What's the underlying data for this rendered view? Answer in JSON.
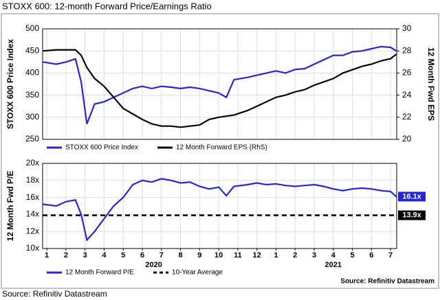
{
  "chart_data": [
    {
      "type": "line",
      "title": "STOXX 600: 12-month Forward Price/Earnings Ratio",
      "y_label": "STOXX 600 Price Index",
      "y2_label": "12 Month Fwd EPS",
      "x": [
        0.8,
        1.5,
        2,
        2.5,
        2.8,
        3.1,
        3.5,
        4,
        4.5,
        5,
        5.5,
        6,
        6.5,
        7,
        7.5,
        8,
        8.5,
        9,
        9.5,
        10,
        10.4,
        10.8,
        11.5,
        12,
        12.5,
        13,
        13.5,
        14,
        14.5,
        15,
        15.5,
        16,
        16.5,
        17,
        17.5,
        18,
        18.5,
        19,
        19.3
      ],
      "xlim": [
        0.78,
        19.32
      ],
      "ylim": [
        250,
        500
      ],
      "yticks": [
        250,
        300,
        350,
        400,
        450,
        500
      ],
      "y2lim": [
        20,
        30
      ],
      "y2ticks": [
        20,
        22,
        24,
        26,
        28,
        30
      ],
      "grid": true,
      "series": [
        {
          "name": "STOXX 600 Price Index",
          "color": "#2424d8",
          "values": [
            425,
            420,
            425,
            432,
            380,
            285,
            330,
            335,
            345,
            355,
            365,
            370,
            365,
            370,
            368,
            365,
            368,
            365,
            360,
            355,
            345,
            385,
            390,
            395,
            400,
            405,
            400,
            408,
            410,
            420,
            430,
            440,
            440,
            448,
            450,
            455,
            460,
            458,
            450
          ]
        },
        {
          "name": "12 Month Forward EPS (RhS)",
          "color": "#000000",
          "axis": "y2",
          "values": [
            28,
            28.1,
            28.1,
            28.1,
            27.6,
            26.5,
            25.5,
            24.8,
            23.8,
            22.8,
            22.3,
            21.8,
            21.4,
            21.2,
            21.2,
            21.1,
            21.2,
            21.3,
            21.8,
            22,
            22.1,
            22.2,
            22.6,
            23,
            23.4,
            23.8,
            24,
            24.3,
            24.5,
            24.9,
            25.2,
            25.5,
            26,
            26.3,
            26.6,
            26.8,
            27.1,
            27.3,
            27.7
          ]
        }
      ]
    },
    {
      "type": "line",
      "y_label": "12 Month Fwd P/E",
      "x": [
        0.8,
        1.5,
        2,
        2.5,
        2.8,
        3.1,
        3.5,
        4,
        4.5,
        5,
        5.5,
        6,
        6.5,
        7,
        7.5,
        8,
        8.5,
        9,
        9.5,
        10,
        10.4,
        10.8,
        11.5,
        12,
        12.5,
        13,
        13.5,
        14,
        14.5,
        15,
        15.5,
        16,
        16.5,
        17,
        17.5,
        18,
        18.5,
        19,
        19.3
      ],
      "xlim": [
        0.78,
        19.32
      ],
      "xticks": [
        1,
        2,
        3,
        4,
        5,
        6,
        7,
        8,
        9,
        10,
        11,
        12,
        {
          "value": 13,
          "label": "1"
        },
        {
          "value": 14,
          "label": "2"
        },
        {
          "value": 15,
          "label": "3"
        },
        {
          "value": 16,
          "label": "4"
        },
        {
          "value": 17,
          "label": "5"
        },
        {
          "value": 18,
          "label": "6"
        },
        {
          "value": 19,
          "label": "7"
        }
      ],
      "year_labels": [
        {
          "value": 6.6,
          "label": "2020"
        },
        {
          "value": 16,
          "label": "2021"
        }
      ],
      "ylim": [
        10,
        20
      ],
      "yticks": [
        {
          "value": 10,
          "label": "10x"
        },
        {
          "value": 12,
          "label": "12x"
        },
        {
          "value": 14,
          "label": "14x"
        },
        {
          "value": 16,
          "label": "16x"
        },
        {
          "value": 18,
          "label": "18x"
        },
        {
          "value": 20,
          "label": "20x"
        }
      ],
      "grid": true,
      "series": [
        {
          "name": "12 Month Forward P/E",
          "color": "#2424d8",
          "values": [
            15.2,
            15,
            15.5,
            15.7,
            14,
            11,
            12,
            13.5,
            15,
            16,
            17.5,
            18,
            17.8,
            18.2,
            18,
            17.7,
            17.8,
            17.3,
            17,
            17.2,
            16.2,
            17.3,
            17.5,
            17.7,
            17.5,
            17.6,
            17.4,
            17.3,
            17.4,
            17.5,
            17.3,
            17,
            16.8,
            17,
            17.1,
            17,
            16.8,
            16.7,
            16.1
          ],
          "value_labels": [
            null,
            null,
            null,
            null,
            null,
            null,
            null,
            null,
            null,
            null,
            null,
            null,
            null,
            null,
            null,
            null,
            null,
            null,
            null,
            null,
            null,
            null,
            null,
            null,
            null,
            null,
            null,
            null,
            null,
            null,
            null,
            null,
            null,
            null,
            null,
            null,
            null,
            null,
            "16.1x"
          ]
        },
        {
          "name": "10-Year Average",
          "color": "#000000",
          "dashed": true,
          "x": [
            0.78,
            19.32
          ],
          "values": [
            13.9,
            13.9
          ],
          "value_labels": [
            null,
            "13.9x"
          ]
        }
      ],
      "source": "Source: Refinitiv Datastream"
    }
  ],
  "caption": "Source: Refinitiv Datastream"
}
